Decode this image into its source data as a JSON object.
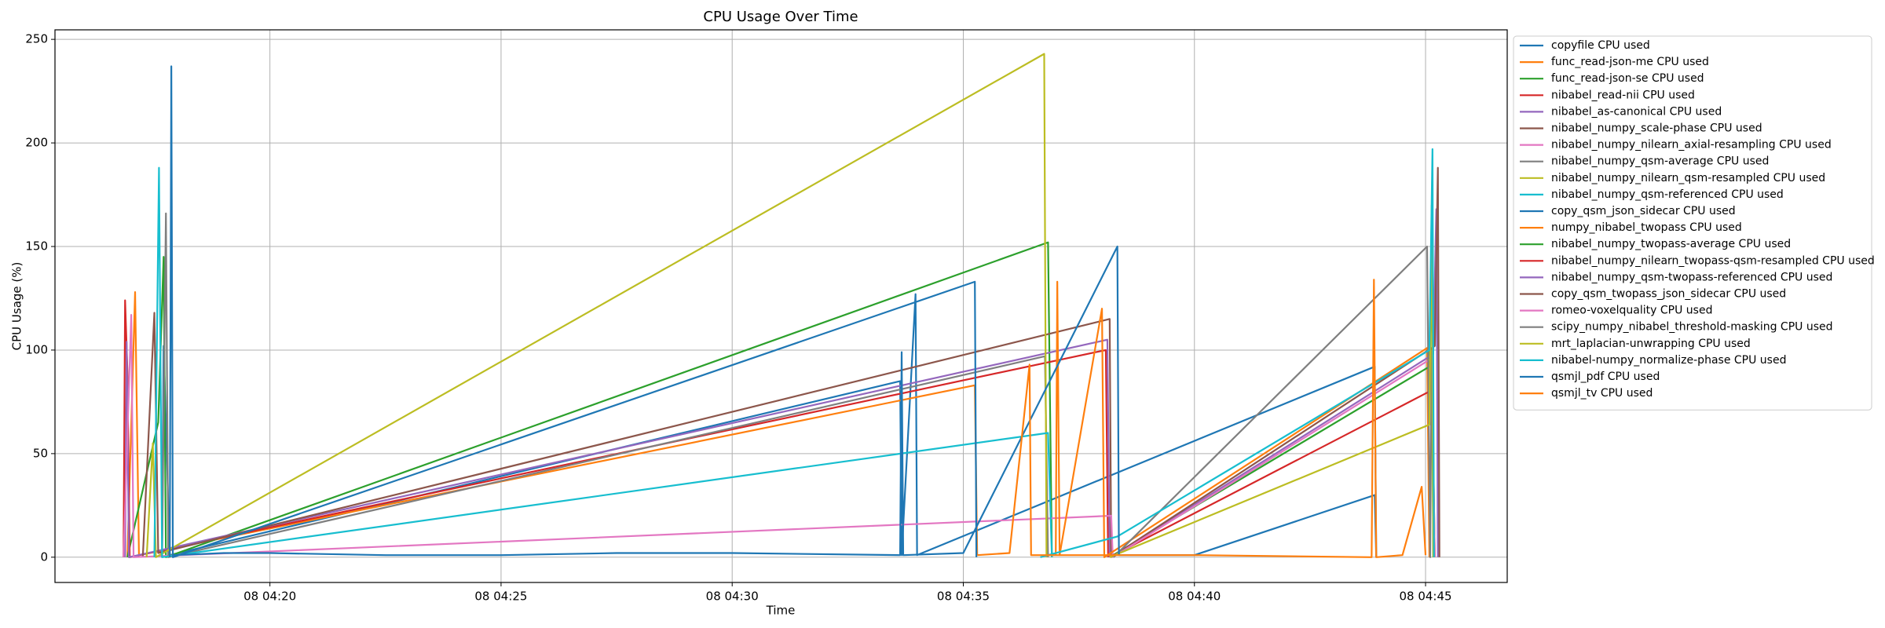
{
  "chart_data": {
    "type": "line",
    "title": "CPU Usage Over Time",
    "x_label": "Time",
    "y_label": "CPU Usage (%)",
    "xlim": [
      "08 04:15:21",
      "08 04:46:46"
    ],
    "xticks": [
      "08 04:20",
      "08 04:25",
      "08 04:30",
      "08 04:35",
      "08 04:40",
      "08 04:45"
    ],
    "ylim": [
      -12.2,
      254.6
    ],
    "yticks": [
      0,
      50,
      100,
      150,
      200,
      250
    ],
    "grid": true,
    "legend": "outside upper right",
    "series": [
      {
        "name": "copyfile CPU used",
        "color": "#1f77b4",
        "x": [
          "08 04:17:40",
          "08 04:17:42",
          "08 04:17:50",
          "08 04:33:38",
          "08 04:33:40",
          "08 04:33:58",
          "08 04:34:00",
          "08 04:43:54",
          "08 04:43:56"
        ],
        "values": [
          0,
          102,
          1,
          85,
          1,
          127,
          1,
          92,
          0
        ]
      },
      {
        "name": "func_read-json-me CPU used",
        "color": "#ff7f0e",
        "x": [
          "08 04:16:55",
          "08 04:17:05",
          "08 04:17:10",
          "08 04:35:15",
          "08 04:35:18"
        ],
        "values": [
          0,
          128,
          1,
          83,
          1
        ]
      },
      {
        "name": "func_read-json-se CPU used",
        "color": "#2ca02c",
        "x": [
          "08 04:16:55",
          "08 04:17:35",
          "08 04:17:42",
          "08 04:17:45",
          "08 04:36:50",
          "08 04:36:55"
        ],
        "values": [
          0,
          65,
          145,
          0,
          152,
          0
        ]
      },
      {
        "name": "nibabel_read-nii CPU used",
        "color": "#d62728",
        "x": [
          "08 04:16:50",
          "08 04:16:52",
          "08 04:16:55",
          "08 04:16:58",
          "08 04:38:05",
          "08 04:38:08"
        ],
        "values": [
          0,
          124,
          90,
          0,
          100,
          0
        ]
      },
      {
        "name": "nibabel_as-canonical CPU used",
        "color": "#9467bd",
        "x": [
          "08 04:16:52",
          "08 04:16:54",
          "08 04:16:57",
          "08 04:38:07",
          "08 04:38:10"
        ],
        "values": [
          0,
          104,
          0,
          105,
          0
        ]
      },
      {
        "name": "nibabel_numpy_scale-phase CPU used",
        "color": "#8c564b",
        "x": [
          "08 04:17:15",
          "08 04:17:30",
          "08 04:17:35",
          "08 04:38:10",
          "08 04:38:12"
        ],
        "values": [
          0,
          118,
          2,
          115,
          0
        ]
      },
      {
        "name": "nibabel_numpy_nilearn_axial-resampling CPU used",
        "color": "#e377c2",
        "x": [
          "08 04:16:50",
          "08 04:17:00",
          "08 04:17:03",
          "08 04:38:12",
          "08 04:38:14"
        ],
        "values": [
          0,
          117,
          0,
          20,
          0
        ]
      },
      {
        "name": "nibabel_numpy_qsm-average CPU used",
        "color": "#7f7f7f",
        "x": [
          "08 04:17:40",
          "08 04:17:45",
          "08 04:17:48",
          "08 04:36:46",
          "08 04:36:50"
        ],
        "values": [
          0,
          166,
          0,
          97,
          0
        ]
      },
      {
        "name": "nibabel_numpy_nilearn_qsm-resampled CPU used",
        "color": "#bcbd22",
        "x": [
          "08 04:17:20",
          "08 04:17:28",
          "08 04:17:32",
          "08 04:36:45",
          "08 04:36:48"
        ],
        "values": [
          0,
          55,
          0,
          243,
          0
        ]
      },
      {
        "name": "nibabel_numpy_qsm-referenced CPU used",
        "color": "#17becf",
        "x": [
          "08 04:17:30",
          "08 04:17:36",
          "08 04:17:40",
          "08 04:36:50",
          "08 04:36:55"
        ],
        "values": [
          0,
          188,
          0,
          60,
          0
        ]
      },
      {
        "name": "copy_qsm_json_sidecar CPU used",
        "color": "#1f77b4",
        "x": [
          "08 04:17:50",
          "08 04:17:52",
          "08 04:17:54",
          "08 04:35:15",
          "08 04:35:17"
        ],
        "values": [
          0,
          237,
          0,
          133,
          0
        ]
      },
      {
        "name": "numpy_nibabel_twopass CPU used",
        "color": "#ff7f0e",
        "x": [
          "08 04:37:00",
          "08 04:37:02",
          "08 04:37:05",
          "08 04:38:00",
          "08 04:38:03",
          "08 04:45:02",
          "08 04:45:05"
        ],
        "values": [
          1,
          133,
          1,
          120,
          0,
          101,
          0
        ]
      },
      {
        "name": "nibabel_numpy_twopass-average CPU used",
        "color": "#2ca02c",
        "x": [
          "08 04:38:10",
          "08 04:45:05",
          "08 04:45:08",
          "08 04:45:10"
        ],
        "values": [
          0,
          92,
          140,
          0
        ]
      },
      {
        "name": "nibabel_numpy_nilearn_twopass-qsm-resampled CPU used",
        "color": "#d62728",
        "x": [
          "08 04:38:10",
          "08 04:45:05",
          "08 04:45:08",
          "08 04:45:12"
        ],
        "values": [
          0,
          80,
          100,
          0
        ]
      },
      {
        "name": "nibabel_numpy_qsm-twopass-referenced CPU used",
        "color": "#9467bd",
        "x": [
          "08 04:38:12",
          "08 04:45:10",
          "08 04:45:14",
          "08 04:45:16"
        ],
        "values": [
          0,
          98,
          168,
          0
        ]
      },
      {
        "name": "copy_qsm_twopass_json_sidecar CPU used",
        "color": "#8c564b",
        "x": [
          "08 04:38:12",
          "08 04:45:12",
          "08 04:45:16",
          "08 04:45:18"
        ],
        "values": [
          0,
          102,
          188,
          0
        ]
      },
      {
        "name": "romeo-voxelquality CPU used",
        "color": "#e377c2",
        "x": [
          "08 04:38:14",
          "08 04:45:08",
          "08 04:45:12"
        ],
        "values": [
          0,
          96,
          0
        ]
      },
      {
        "name": "scipy_numpy_nibabel_threshold-masking CPU used",
        "color": "#7f7f7f",
        "x": [
          "08 04:38:15",
          "08 04:45:02",
          "08 04:45:06",
          "08 04:45:08"
        ],
        "values": [
          0,
          150,
          0,
          100
        ]
      },
      {
        "name": "mrt_laplacian-unwrapping CPU used",
        "color": "#bcbd22",
        "x": [
          "08 04:38:10",
          "08 04:45:05",
          "08 04:45:08",
          "08 04:45:10"
        ],
        "values": [
          0,
          64,
          170,
          0
        ]
      },
      {
        "name": "nibabel-numpy_normalize-phase CPU used",
        "color": "#17becf",
        "x": [
          "08 04:36:40",
          "08 04:38:20",
          "08 04:45:05",
          "08 04:45:09",
          "08 04:45:11"
        ],
        "values": [
          0,
          10,
          100,
          197,
          0
        ]
      },
      {
        "name": "qsmjl_pdf CPU used",
        "color": "#1f77b4",
        "x": [
          "08 04:17:55",
          "08 04:19:00",
          "08 04:20:00",
          "08 04:22:30",
          "08 04:25:00",
          "08 04:27:30",
          "08 04:30:00",
          "08 04:33:38",
          "08 04:33:40",
          "08 04:33:42",
          "08 04:35:00",
          "08 04:38:20",
          "08 04:38:22",
          "08 04:40:00",
          "08 04:43:54",
          "08 04:43:56"
        ],
        "values": [
          1,
          2,
          2,
          1,
          1,
          2,
          2,
          1,
          99,
          1,
          2,
          150,
          1,
          1,
          30,
          0
        ]
      },
      {
        "name": "qsmjl_tv CPU used",
        "color": "#ff7f0e",
        "x": [
          "08 04:35:18",
          "08 04:36:00",
          "08 04:36:26",
          "08 04:36:28",
          "08 04:37:30",
          "08 04:40:00",
          "08 04:43:50",
          "08 04:43:53",
          "08 04:43:56",
          "08 04:44:30",
          "08 04:44:55",
          "08 04:45:00"
        ],
        "values": [
          1,
          2,
          93,
          1,
          1,
          1,
          0,
          134,
          0,
          1,
          34,
          1
        ]
      }
    ]
  }
}
